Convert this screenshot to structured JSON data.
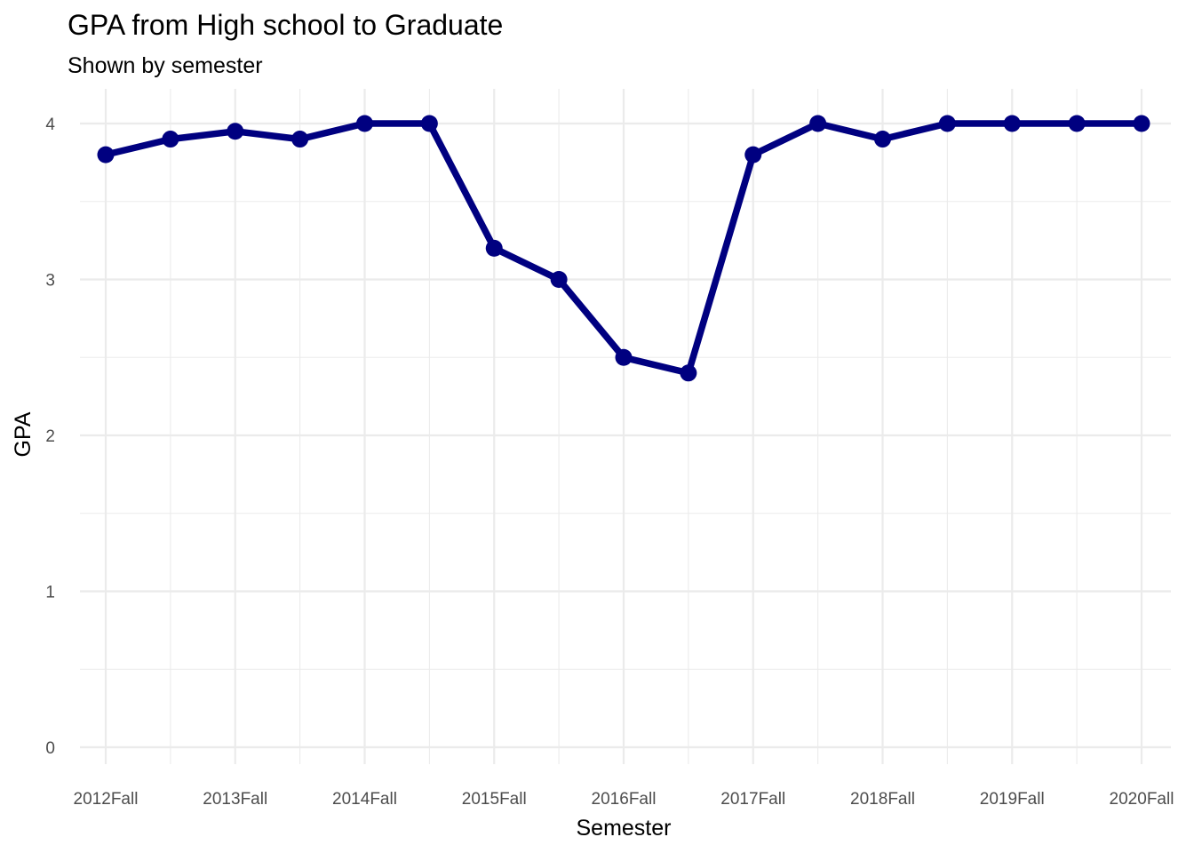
{
  "chart_data": {
    "type": "line",
    "title": "GPA from High school to Graduate",
    "subtitle": "Shown by semester",
    "xlabel": "Semester",
    "ylabel": "GPA",
    "ylim": [
      0,
      4
    ],
    "y_ticks": [
      0,
      1,
      2,
      3,
      4
    ],
    "x_tick_labels": [
      "2012Fall",
      "2013Fall",
      "2014Fall",
      "2015Fall",
      "2016Fall",
      "2017Fall",
      "2018Fall",
      "2019Fall",
      "2020Fall"
    ],
    "grid": true,
    "legend": "none",
    "series": [
      {
        "color": "#000080",
        "points": [
          {
            "x": "2012Fall",
            "y": 3.8
          },
          {
            "x": "2013Spring",
            "y": 3.9
          },
          {
            "x": "2013Fall",
            "y": 3.95
          },
          {
            "x": "2014Spring",
            "y": 3.9
          },
          {
            "x": "2014Fall",
            "y": 4.0
          },
          {
            "x": "2015Spring",
            "y": 4.0
          },
          {
            "x": "2015Fall",
            "y": 3.2
          },
          {
            "x": "2016Spring",
            "y": 3.0
          },
          {
            "x": "2016Fall",
            "y": 2.5
          },
          {
            "x": "2017Spring",
            "y": 2.4
          },
          {
            "x": "2017Fall",
            "y": 3.8
          },
          {
            "x": "2018Spring",
            "y": 4.0
          },
          {
            "x": "2018Fall",
            "y": 3.9
          },
          {
            "x": "2019Spring",
            "y": 4.0
          },
          {
            "x": "2019Fall",
            "y": 4.0
          },
          {
            "x": "2020Spring",
            "y": 4.0
          },
          {
            "x": "2020Fall",
            "y": 4.0
          }
        ]
      }
    ]
  }
}
